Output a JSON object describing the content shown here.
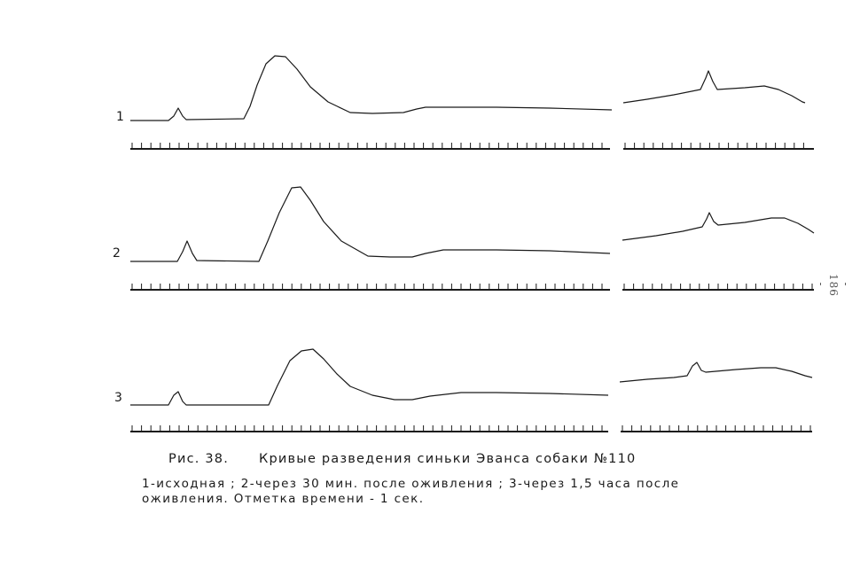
{
  "rows": [
    {
      "label": "1"
    },
    {
      "label": "2"
    },
    {
      "label": "3"
    }
  ],
  "page_number": "- 186 -",
  "caption": {
    "figure_label": "Рис. 38.",
    "title": "Кривые разведения синьки Эванса собаки №110",
    "line1": "1-исходная ;  2-через 30 мин. после оживления ;  3-через 1,5 часа  после",
    "line2": "оживления.  Отметка  времени - 1 сек."
  },
  "colors": {
    "ink": "#1a1a1a",
    "paper": "#ffffff"
  }
}
